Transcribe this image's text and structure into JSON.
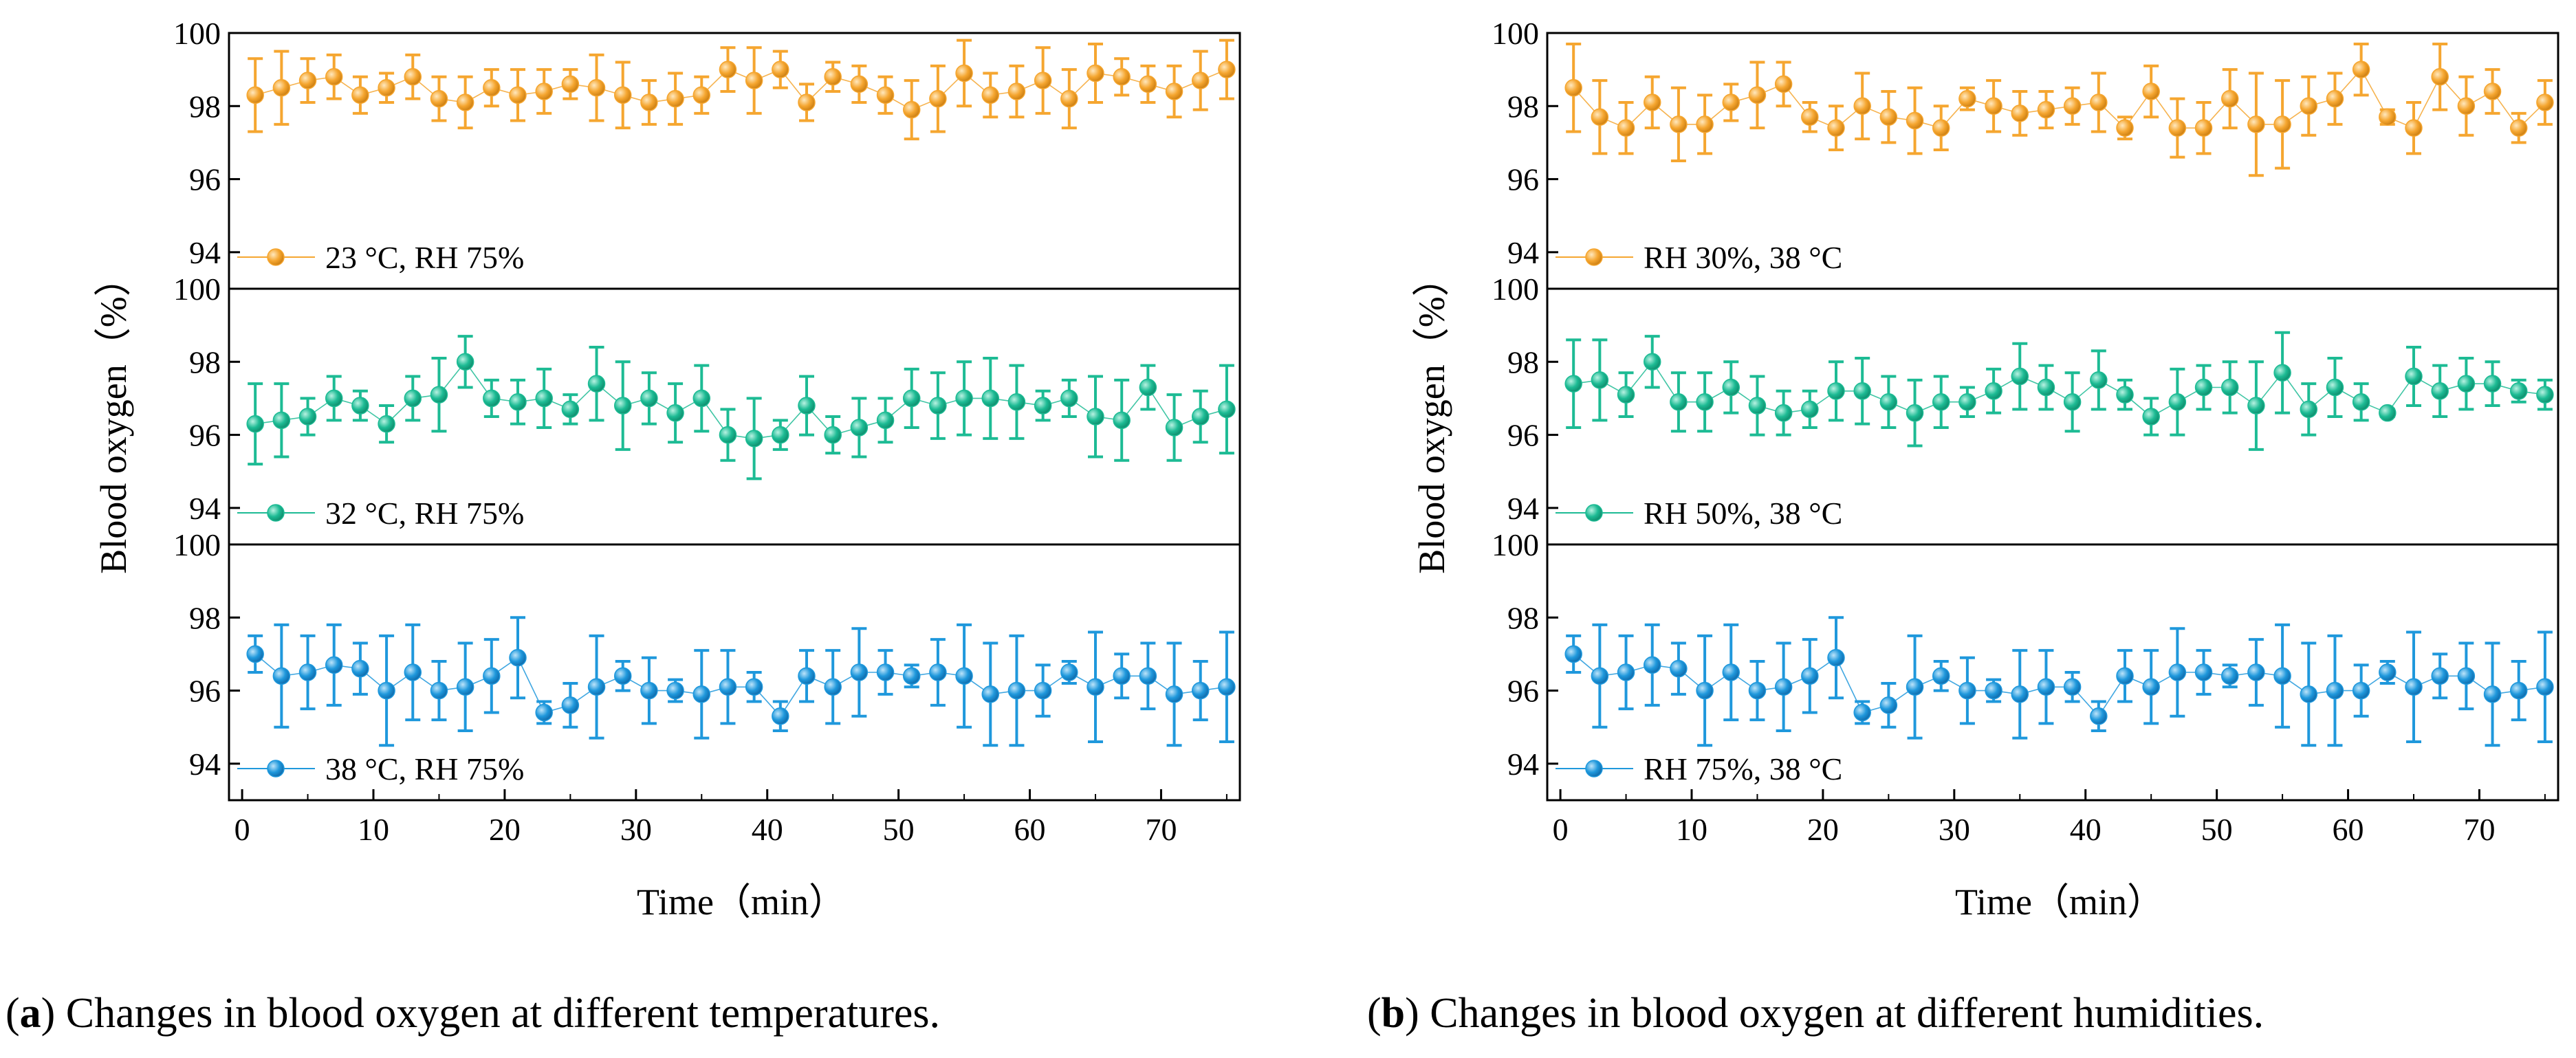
{
  "ylabel": "Blood oxygen（%）",
  "xlabel": "Time（min）",
  "xlim": [
    -1,
    76
  ],
  "ylim": [
    93,
    100
  ],
  "xticks": [
    0,
    10,
    20,
    30,
    40,
    50,
    60,
    70
  ],
  "yticks": [
    94,
    96,
    98,
    100
  ],
  "captions": [
    {
      "letter": "a",
      "text": "Changes in blood oxygen at different temperatures."
    },
    {
      "letter": "b",
      "text": "Changes in blood oxygen at different humidities."
    }
  ],
  "chart_data": [
    {
      "type": "scatter",
      "title": "(a) Changes in blood oxygen at different temperatures.",
      "xlabel": "Time（min）",
      "ylabel": "Blood oxygen（%）",
      "subplots": [
        {
          "legend": "23 °C, RH 75%",
          "color": "#F5A630",
          "x": [
            1,
            3,
            5,
            7,
            9,
            11,
            13,
            15,
            17,
            19,
            21,
            23,
            25,
            27,
            29,
            31,
            33,
            35,
            37,
            39,
            41,
            43,
            45,
            47,
            49,
            51,
            53,
            55,
            57,
            59,
            61,
            63,
            65,
            67,
            69,
            71,
            73,
            75
          ],
          "y": [
            98.3,
            98.5,
            98.7,
            98.8,
            98.3,
            98.5,
            98.8,
            98.2,
            98.1,
            98.5,
            98.3,
            98.4,
            98.6,
            98.5,
            98.3,
            98.1,
            98.2,
            98.3,
            99.0,
            98.7,
            99.0,
            98.1,
            98.8,
            98.6,
            98.3,
            97.9,
            98.2,
            98.9,
            98.3,
            98.4,
            98.7,
            98.2,
            98.9,
            98.8,
            98.6,
            98.4,
            98.7,
            99.0
          ],
          "err": [
            1.0,
            1.0,
            0.6,
            0.6,
            0.5,
            0.4,
            0.6,
            0.6,
            0.7,
            0.5,
            0.7,
            0.6,
            0.4,
            0.9,
            0.9,
            0.6,
            0.7,
            0.5,
            0.6,
            0.9,
            0.5,
            0.5,
            0.4,
            0.5,
            0.5,
            0.8,
            0.9,
            0.9,
            0.6,
            0.7,
            0.9,
            0.8,
            0.8,
            0.5,
            0.5,
            0.7,
            0.8,
            0.8
          ]
        },
        {
          "legend": "32 °C, RH 75%",
          "color": "#1DBB94",
          "x": [
            1,
            3,
            5,
            7,
            9,
            11,
            13,
            15,
            17,
            19,
            21,
            23,
            25,
            27,
            29,
            31,
            33,
            35,
            37,
            39,
            41,
            43,
            45,
            47,
            49,
            51,
            53,
            55,
            57,
            59,
            61,
            63,
            65,
            67,
            69,
            71,
            73,
            75
          ],
          "y": [
            96.3,
            96.4,
            96.5,
            97.0,
            96.8,
            96.3,
            97.0,
            97.1,
            98.0,
            97.0,
            96.9,
            97.0,
            96.7,
            97.4,
            96.8,
            97.0,
            96.6,
            97.0,
            96.0,
            95.9,
            96.0,
            96.8,
            96.0,
            96.2,
            96.4,
            97.0,
            96.8,
            97.0,
            97.0,
            96.9,
            96.8,
            97.0,
            96.5,
            96.4,
            97.3,
            96.2,
            96.5,
            96.7
          ],
          "err": [
            1.1,
            1.0,
            0.5,
            0.6,
            0.4,
            0.5,
            0.6,
            1.0,
            0.7,
            0.5,
            0.6,
            0.8,
            0.4,
            1.0,
            1.2,
            0.7,
            0.8,
            0.9,
            0.7,
            1.1,
            0.4,
            0.8,
            0.5,
            0.8,
            0.6,
            0.8,
            0.9,
            1.0,
            1.1,
            1.0,
            0.4,
            0.5,
            1.1,
            1.1,
            0.6,
            0.9,
            0.7,
            1.2
          ]
        },
        {
          "legend": "38 °C, RH 75%",
          "color": "#1F98DC",
          "x": [
            1,
            3,
            5,
            7,
            9,
            11,
            13,
            15,
            17,
            19,
            21,
            23,
            25,
            27,
            29,
            31,
            33,
            35,
            37,
            39,
            41,
            43,
            45,
            47,
            49,
            51,
            53,
            55,
            57,
            59,
            61,
            63,
            65,
            67,
            69,
            71,
            73,
            75
          ],
          "y": [
            97.0,
            96.4,
            96.5,
            96.7,
            96.6,
            96.0,
            96.5,
            96.0,
            96.1,
            96.4,
            96.9,
            95.4,
            95.6,
            96.1,
            96.4,
            96.0,
            96.0,
            95.9,
            96.1,
            96.1,
            95.3,
            96.4,
            96.1,
            96.5,
            96.5,
            96.4,
            96.5,
            96.4,
            95.9,
            96.0,
            96.0,
            96.5,
            96.1,
            96.4,
            96.4,
            95.9,
            96.0,
            96.1
          ],
          "err": [
            0.5,
            1.4,
            1.0,
            1.1,
            0.7,
            1.5,
            1.3,
            0.8,
            1.2,
            1.0,
            1.1,
            0.3,
            0.6,
            1.4,
            0.4,
            0.9,
            0.3,
            1.2,
            1.0,
            0.4,
            0.4,
            0.7,
            1.0,
            1.2,
            0.6,
            0.3,
            0.9,
            1.4,
            1.4,
            1.5,
            0.7,
            0.3,
            1.5,
            0.6,
            0.9,
            1.4,
            0.8,
            1.5
          ]
        }
      ]
    },
    {
      "type": "scatter",
      "title": "(b) Changes in blood oxygen at different humidities.",
      "xlabel": "Time（min）",
      "ylabel": "Blood oxygen（%）",
      "subplots": [
        {
          "legend": "RH 30%, 38 °C",
          "color": "#F5A630",
          "x": [
            1,
            3,
            5,
            7,
            9,
            11,
            13,
            15,
            17,
            19,
            21,
            23,
            25,
            27,
            29,
            31,
            33,
            35,
            37,
            39,
            41,
            43,
            45,
            47,
            49,
            51,
            53,
            55,
            57,
            59,
            61,
            63,
            65,
            67,
            69,
            71,
            73,
            75
          ],
          "y": [
            98.5,
            97.7,
            97.4,
            98.1,
            97.5,
            97.5,
            98.1,
            98.3,
            98.6,
            97.7,
            97.4,
            98.0,
            97.7,
            97.6,
            97.4,
            98.2,
            98.0,
            97.8,
            97.9,
            98.0,
            98.1,
            97.4,
            98.4,
            97.4,
            97.4,
            98.2,
            97.5,
            97.5,
            98.0,
            98.2,
            99.0,
            97.7,
            97.4,
            98.8,
            98.0,
            98.4,
            97.4,
            98.1
          ],
          "err": [
            1.2,
            1.0,
            0.7,
            0.7,
            1.0,
            0.8,
            0.5,
            0.9,
            0.6,
            0.4,
            0.6,
            0.9,
            0.7,
            0.9,
            0.6,
            0.3,
            0.7,
            0.6,
            0.5,
            0.5,
            0.8,
            0.3,
            0.7,
            0.8,
            0.7,
            0.8,
            1.4,
            1.2,
            0.8,
            0.7,
            0.7,
            0.2,
            0.7,
            0.9,
            0.8,
            0.6,
            0.4,
            0.6
          ]
        },
        {
          "legend": "RH 50%, 38 °C",
          "color": "#1DBB94",
          "x": [
            1,
            3,
            5,
            7,
            9,
            11,
            13,
            15,
            17,
            19,
            21,
            23,
            25,
            27,
            29,
            31,
            33,
            35,
            37,
            39,
            41,
            43,
            45,
            47,
            49,
            51,
            53,
            55,
            57,
            59,
            61,
            63,
            65,
            67,
            69,
            71,
            73,
            75
          ],
          "y": [
            97.4,
            97.5,
            97.1,
            98.0,
            96.9,
            96.9,
            97.3,
            96.8,
            96.6,
            96.7,
            97.2,
            97.2,
            96.9,
            96.6,
            96.9,
            96.9,
            97.2,
            97.6,
            97.3,
            96.9,
            97.5,
            97.1,
            96.5,
            96.9,
            97.3,
            97.3,
            96.8,
            97.7,
            96.7,
            97.3,
            96.9,
            96.6,
            97.6,
            97.2,
            97.4,
            97.4,
            97.2,
            97.1
          ],
          "err": [
            1.2,
            1.1,
            0.6,
            0.7,
            0.8,
            0.8,
            0.7,
            0.8,
            0.6,
            0.5,
            0.8,
            0.9,
            0.7,
            0.9,
            0.7,
            0.4,
            0.6,
            0.9,
            0.6,
            0.8,
            0.8,
            0.4,
            0.5,
            0.9,
            0.6,
            0.7,
            1.2,
            1.1,
            0.7,
            0.8,
            0.5,
            0.1,
            0.8,
            0.7,
            0.7,
            0.6,
            0.3,
            0.4
          ]
        },
        {
          "legend": "RH 75%, 38 °C",
          "color": "#1F98DC",
          "x": [
            1,
            3,
            5,
            7,
            9,
            11,
            13,
            15,
            17,
            19,
            21,
            23,
            25,
            27,
            29,
            31,
            33,
            35,
            37,
            39,
            41,
            43,
            45,
            47,
            49,
            51,
            53,
            55,
            57,
            59,
            61,
            63,
            65,
            67,
            69,
            71,
            73,
            75
          ],
          "y": [
            97.0,
            96.4,
            96.5,
            96.7,
            96.6,
            96.0,
            96.5,
            96.0,
            96.1,
            96.4,
            96.9,
            95.4,
            95.6,
            96.1,
            96.4,
            96.0,
            96.0,
            95.9,
            96.1,
            96.1,
            95.3,
            96.4,
            96.1,
            96.5,
            96.5,
            96.4,
            96.5,
            96.4,
            95.9,
            96.0,
            96.0,
            96.5,
            96.1,
            96.4,
            96.4,
            95.9,
            96.0,
            96.1
          ],
          "err": [
            0.5,
            1.4,
            1.0,
            1.1,
            0.7,
            1.5,
            1.3,
            0.8,
            1.2,
            1.0,
            1.1,
            0.3,
            0.6,
            1.4,
            0.4,
            0.9,
            0.3,
            1.2,
            1.0,
            0.4,
            0.4,
            0.7,
            1.0,
            1.2,
            0.6,
            0.3,
            0.9,
            1.4,
            1.4,
            1.5,
            0.7,
            0.3,
            1.5,
            0.6,
            0.9,
            1.4,
            0.8,
            1.5
          ]
        }
      ]
    }
  ]
}
